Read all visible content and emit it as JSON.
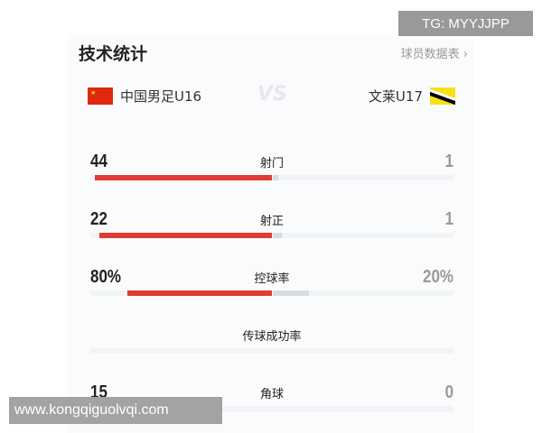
{
  "header": {
    "title": "技术统计",
    "player_table_link": "球员数据表 ›"
  },
  "teams": {
    "home": "中国男足U16",
    "away": "文莱U17",
    "vs": "VS"
  },
  "stats": [
    {
      "label": "射门",
      "home": "44",
      "away": "1",
      "home_share": 0.978
    },
    {
      "label": "射正",
      "home": "22",
      "away": "1",
      "home_share": 0.957
    },
    {
      "label": "控球率",
      "home": "80%",
      "away": "20%",
      "home_share": 0.8
    },
    {
      "label": "传球成功率",
      "home": "",
      "away": "",
      "home_share": null
    },
    {
      "label": "角球",
      "home": "15",
      "away": "0",
      "home_share": 1
    }
  ],
  "colors": {
    "home": "#e03c31",
    "away": "#d8dce0"
  },
  "watermarks": {
    "top": "TG: MYYJJPP",
    "bottom": "www.kongqiguolvqi.com"
  }
}
